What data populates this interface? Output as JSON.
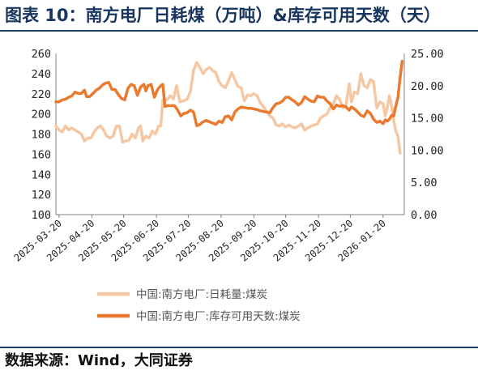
{
  "header": {
    "title": "图表 10：南方电厂日耗煤（万吨）&库存可用天数（天）"
  },
  "footer": {
    "source": "数据来源：Wind，大同证券"
  },
  "colors": {
    "daily": "#f5c7a3",
    "inventory": "#e97a2f",
    "title": "#17355e",
    "rule": "#1f3d6b"
  },
  "chart_data": {
    "type": "line",
    "title": "",
    "ylabel_left": "",
    "ylabel_right": "",
    "ylim_left": [
      100,
      260
    ],
    "ylim_right": [
      0,
      25
    ],
    "left_ticks": [
      "100",
      "120",
      "140",
      "160",
      "180",
      "200",
      "220",
      "240",
      "260"
    ],
    "right_ticks": [
      "0.00",
      "5.00",
      "10.00",
      "15.00",
      "20.00",
      "25.00"
    ],
    "x_tick_labels": [
      "2025-03-20",
      "2025-04-20",
      "2025-05-20",
      "2025-06-20",
      "2025-07-20",
      "2025-08-20",
      "2025-09-20",
      "2025-10-20",
      "2025-11-20",
      "2025-12-20",
      "2026-01-20"
    ],
    "x_range": [
      "2025-03-17",
      "2026-02-09"
    ],
    "grid": false,
    "legend_position": "bottom",
    "series": [
      {
        "name": "中国:南方电厂:日耗量:煤炭",
        "axis": "left",
        "points": [
          [
            "2025-03-17",
            188
          ],
          [
            "2025-03-20",
            184
          ],
          [
            "2025-03-23",
            182
          ],
          [
            "2025-03-26",
            188
          ],
          [
            "2025-03-29",
            184
          ],
          [
            "2025-04-01",
            186
          ],
          [
            "2025-04-04",
            184
          ],
          [
            "2025-04-07",
            182
          ],
          [
            "2025-04-10",
            180
          ],
          [
            "2025-04-13",
            173
          ],
          [
            "2025-04-16",
            176
          ],
          [
            "2025-04-19",
            176
          ],
          [
            "2025-04-22",
            182
          ],
          [
            "2025-04-25",
            186
          ],
          [
            "2025-04-28",
            188
          ],
          [
            "2025-05-01",
            184
          ],
          [
            "2025-05-04",
            178
          ],
          [
            "2025-05-07",
            176
          ],
          [
            "2025-05-10",
            178
          ],
          [
            "2025-05-13",
            188
          ],
          [
            "2025-05-16",
            188
          ],
          [
            "2025-05-19",
            172
          ],
          [
            "2025-05-22",
            173
          ],
          [
            "2025-05-25",
            174
          ],
          [
            "2025-05-28",
            180
          ],
          [
            "2025-05-31",
            176
          ],
          [
            "2025-06-03",
            186
          ],
          [
            "2025-06-05",
            188
          ],
          [
            "2025-06-07",
            173
          ],
          [
            "2025-06-10",
            178
          ],
          [
            "2025-06-13",
            176
          ],
          [
            "2025-06-16",
            183
          ],
          [
            "2025-06-19",
            180
          ],
          [
            "2025-06-22",
            188
          ],
          [
            "2025-06-24",
            188
          ],
          [
            "2025-06-26",
            214
          ],
          [
            "2025-06-30",
            214
          ],
          [
            "2025-07-03",
            218
          ],
          [
            "2025-07-06",
            215
          ],
          [
            "2025-07-09",
            228
          ],
          [
            "2025-07-12",
            212
          ],
          [
            "2025-07-16",
            213
          ],
          [
            "2025-07-19",
            215
          ],
          [
            "2025-07-22",
            222
          ],
          [
            "2025-07-25",
            243
          ],
          [
            "2025-07-28",
            251
          ],
          [
            "2025-07-31",
            246
          ],
          [
            "2025-08-03",
            240
          ],
          [
            "2025-08-06",
            244
          ],
          [
            "2025-08-09",
            246
          ],
          [
            "2025-08-12",
            243
          ],
          [
            "2025-08-15",
            241
          ],
          [
            "2025-08-18",
            232
          ],
          [
            "2025-08-21",
            228
          ],
          [
            "2025-08-24",
            226
          ],
          [
            "2025-08-27",
            233
          ],
          [
            "2025-08-30",
            241
          ],
          [
            "2025-09-02",
            234
          ],
          [
            "2025-09-05",
            227
          ],
          [
            "2025-09-08",
            226
          ],
          [
            "2025-09-11",
            213
          ],
          [
            "2025-09-14",
            219
          ],
          [
            "2025-09-17",
            218
          ],
          [
            "2025-09-20",
            220
          ],
          [
            "2025-09-23",
            218
          ],
          [
            "2025-09-26",
            211
          ],
          [
            "2025-09-29",
            207
          ],
          [
            "2025-10-02",
            202
          ],
          [
            "2025-10-05",
            198
          ],
          [
            "2025-10-08",
            196
          ],
          [
            "2025-10-11",
            189
          ],
          [
            "2025-10-14",
            188
          ],
          [
            "2025-10-17",
            190
          ],
          [
            "2025-10-20",
            187
          ],
          [
            "2025-10-23",
            189
          ],
          [
            "2025-10-26",
            187
          ],
          [
            "2025-10-29",
            186
          ],
          [
            "2025-11-01",
            188
          ],
          [
            "2025-11-04",
            190
          ],
          [
            "2025-11-07",
            184
          ],
          [
            "2025-11-10",
            186
          ],
          [
            "2025-11-13",
            188
          ],
          [
            "2025-11-16",
            189
          ],
          [
            "2025-11-19",
            190
          ],
          [
            "2025-11-22",
            196
          ],
          [
            "2025-11-25",
            198
          ],
          [
            "2025-11-28",
            200
          ],
          [
            "2025-12-01",
            206
          ],
          [
            "2025-12-04",
            210
          ],
          [
            "2025-12-07",
            218
          ],
          [
            "2025-12-10",
            214
          ],
          [
            "2025-12-13",
            206
          ],
          [
            "2025-12-16",
            209
          ],
          [
            "2025-12-19",
            230
          ],
          [
            "2025-12-21",
            212
          ],
          [
            "2025-12-24",
            222
          ],
          [
            "2025-12-27",
            220
          ],
          [
            "2025-12-30",
            240
          ],
          [
            "2026-01-02",
            228
          ],
          [
            "2026-01-05",
            226
          ],
          [
            "2026-01-08",
            234
          ],
          [
            "2026-01-11",
            232
          ],
          [
            "2026-01-14",
            206
          ],
          [
            "2026-01-17",
            212
          ],
          [
            "2026-01-20",
            210
          ],
          [
            "2026-01-22",
            198
          ],
          [
            "2026-01-24",
            206
          ],
          [
            "2026-01-26",
            218
          ],
          [
            "2026-01-28",
            208
          ],
          [
            "2026-01-30",
            194
          ],
          [
            "2026-02-01",
            183
          ],
          [
            "2026-02-03",
            178
          ],
          [
            "2026-02-05",
            161
          ]
        ]
      },
      {
        "name": "中国:南方电厂:库存可用天数:煤炭",
        "axis": "right",
        "points": [
          [
            "2025-03-17",
            17.5
          ],
          [
            "2025-03-20",
            17.5
          ],
          [
            "2025-03-23",
            17.8
          ],
          [
            "2025-03-26",
            17.9
          ],
          [
            "2025-03-29",
            18.2
          ],
          [
            "2025-04-01",
            18.4
          ],
          [
            "2025-04-04",
            19.0
          ],
          [
            "2025-04-07",
            18.8
          ],
          [
            "2025-04-10",
            18.8
          ],
          [
            "2025-04-13",
            19.3
          ],
          [
            "2025-04-15",
            18.3
          ],
          [
            "2025-04-18",
            18.3
          ],
          [
            "2025-04-21",
            18.8
          ],
          [
            "2025-04-24",
            19.3
          ],
          [
            "2025-04-27",
            19.6
          ],
          [
            "2025-04-30",
            20.1
          ],
          [
            "2025-05-03",
            20.4
          ],
          [
            "2025-05-06",
            20.5
          ],
          [
            "2025-05-09",
            19.4
          ],
          [
            "2025-05-12",
            19.4
          ],
          [
            "2025-05-15",
            18.6
          ],
          [
            "2025-05-18",
            18.0
          ],
          [
            "2025-05-21",
            17.8
          ],
          [
            "2025-05-24",
            19.6
          ],
          [
            "2025-05-27",
            20.2
          ],
          [
            "2025-05-30",
            20.0
          ],
          [
            "2025-06-02",
            18.5
          ],
          [
            "2025-06-05",
            19.8
          ],
          [
            "2025-06-08",
            20.2
          ],
          [
            "2025-06-10",
            19.2
          ],
          [
            "2025-06-12",
            20.0
          ],
          [
            "2025-06-15",
            20.2
          ],
          [
            "2025-06-18",
            18.2
          ],
          [
            "2025-06-21",
            19.4
          ],
          [
            "2025-06-24",
            20.0
          ],
          [
            "2025-06-26",
            20.2
          ],
          [
            "2025-06-28",
            16.8
          ],
          [
            "2025-07-01",
            16.9
          ],
          [
            "2025-07-04",
            16.9
          ],
          [
            "2025-07-07",
            16.9
          ],
          [
            "2025-07-10",
            16.2
          ],
          [
            "2025-07-13",
            15.3
          ],
          [
            "2025-07-16",
            15.7
          ],
          [
            "2025-07-19",
            15.8
          ],
          [
            "2025-07-22",
            16.2
          ],
          [
            "2025-07-25",
            15.9
          ],
          [
            "2025-07-28",
            13.8
          ],
          [
            "2025-07-31",
            14.0
          ],
          [
            "2025-08-03",
            14.4
          ],
          [
            "2025-08-06",
            14.6
          ],
          [
            "2025-08-09",
            14.4
          ],
          [
            "2025-08-12",
            14.2
          ],
          [
            "2025-08-15",
            14.0
          ],
          [
            "2025-08-18",
            14.5
          ],
          [
            "2025-08-21",
            14.3
          ],
          [
            "2025-08-24",
            15.2
          ],
          [
            "2025-08-27",
            15.3
          ],
          [
            "2025-08-30",
            14.7
          ],
          [
            "2025-09-02",
            15.9
          ],
          [
            "2025-09-05",
            16.4
          ],
          [
            "2025-09-08",
            16.7
          ],
          [
            "2025-09-11",
            16.6
          ],
          [
            "2025-09-14",
            16.5
          ],
          [
            "2025-09-17",
            16.5
          ],
          [
            "2025-09-20",
            16.4
          ],
          [
            "2025-09-23",
            16.3
          ],
          [
            "2025-09-26",
            16.1
          ],
          [
            "2025-09-29",
            16.0
          ],
          [
            "2025-10-02",
            15.9
          ],
          [
            "2025-10-05",
            15.8
          ],
          [
            "2025-10-08",
            16.6
          ],
          [
            "2025-10-11",
            17.2
          ],
          [
            "2025-10-14",
            17.3
          ],
          [
            "2025-10-17",
            17.6
          ],
          [
            "2025-10-20",
            18.2
          ],
          [
            "2025-10-23",
            18.2
          ],
          [
            "2025-10-26",
            17.8
          ],
          [
            "2025-10-29",
            17.5
          ],
          [
            "2025-11-01",
            17.0
          ],
          [
            "2025-11-04",
            17.4
          ],
          [
            "2025-11-07",
            18.3
          ],
          [
            "2025-11-10",
            17.9
          ],
          [
            "2025-11-13",
            17.6
          ],
          [
            "2025-11-16",
            17.5
          ],
          [
            "2025-11-19",
            18.4
          ],
          [
            "2025-11-22",
            18.2
          ],
          [
            "2025-11-25",
            18.2
          ],
          [
            "2025-11-28",
            17.6
          ],
          [
            "2025-12-01",
            17.2
          ],
          [
            "2025-12-04",
            16.4
          ],
          [
            "2025-12-07",
            17.0
          ],
          [
            "2025-12-10",
            16.8
          ],
          [
            "2025-12-13",
            16.9
          ],
          [
            "2025-12-16",
            16.7
          ],
          [
            "2025-12-19",
            16.2
          ],
          [
            "2025-12-21",
            16.7
          ],
          [
            "2025-12-24",
            16.4
          ],
          [
            "2025-12-27",
            15.9
          ],
          [
            "2025-12-30",
            15.4
          ],
          [
            "2026-01-02",
            15.2
          ],
          [
            "2026-01-05",
            16.1
          ],
          [
            "2026-01-08",
            15.7
          ],
          [
            "2026-01-11",
            14.8
          ],
          [
            "2026-01-14",
            14.3
          ],
          [
            "2026-01-17",
            14.5
          ],
          [
            "2026-01-20",
            14.1
          ],
          [
            "2026-01-22",
            14.7
          ],
          [
            "2026-01-24",
            14.5
          ],
          [
            "2026-01-26",
            14.8
          ],
          [
            "2026-01-28",
            15.4
          ],
          [
            "2026-01-30",
            15.3
          ],
          [
            "2026-02-01",
            16.8
          ],
          [
            "2026-02-03",
            18.2
          ],
          [
            "2026-02-05",
            21.2
          ],
          [
            "2026-02-07",
            23.8
          ]
        ]
      }
    ]
  }
}
